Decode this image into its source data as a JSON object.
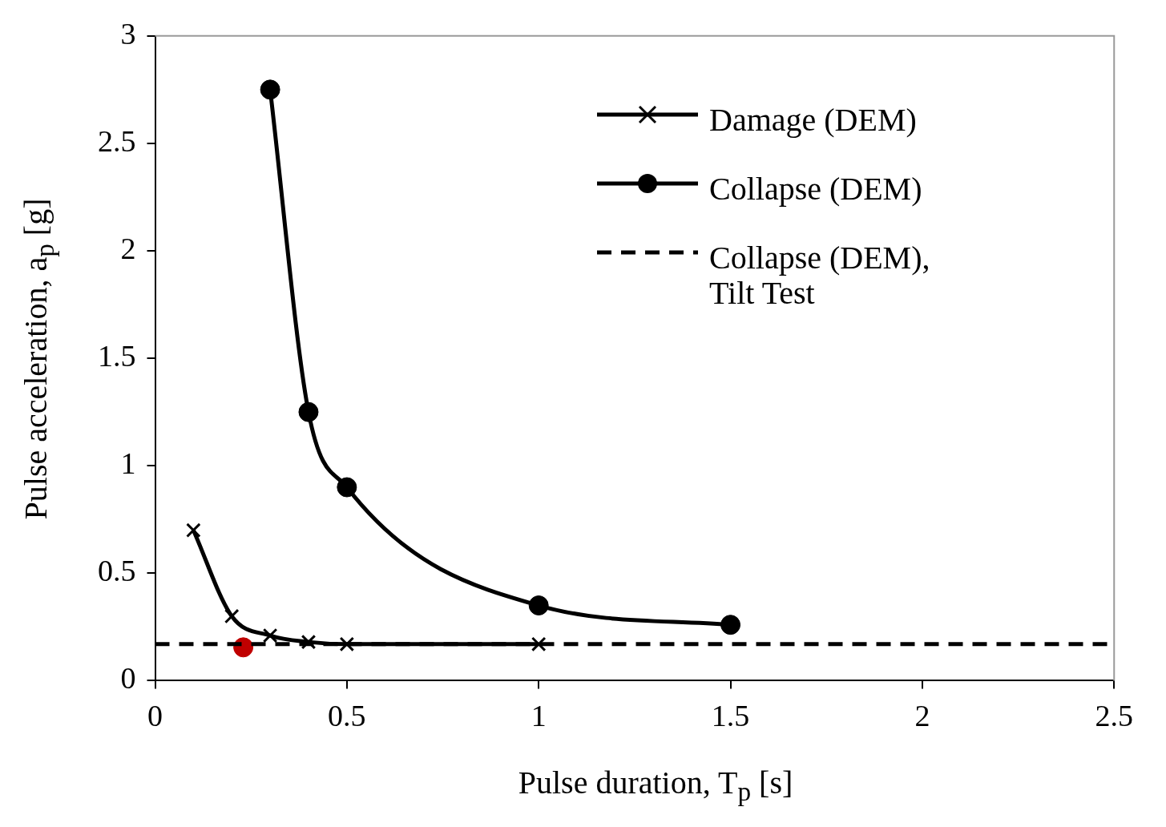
{
  "chart_data": {
    "type": "line",
    "xlabel": "Pulse duration, T$_{p}$ [s]",
    "ylabel": "Pulse acceleration, a$_{p}$ [g]",
    "xlim": [
      0,
      2.5
    ],
    "xticks": [
      0,
      0.5,
      1,
      1.5,
      2,
      2.5
    ],
    "ylim": [
      0,
      3
    ],
    "yticks": [
      0,
      0.5,
      1,
      1.5,
      2,
      2.5,
      3
    ],
    "grid": false,
    "legend": "top right",
    "series": [
      {
        "name": "Damage (DEM)",
        "color": "#000000",
        "marker": "cross",
        "line_style": "solid",
        "x": [
          0.1,
          0.2,
          0.3,
          0.4,
          0.5,
          1.0
        ],
        "values": [
          0.7,
          0.3,
          0.21,
          0.18,
          0.17,
          0.17
        ]
      },
      {
        "name": "Collapse (DEM)",
        "color": "#000000",
        "marker": "circle",
        "line_style": "solid",
        "x": [
          0.3,
          0.4,
          0.5,
          1.0,
          1.5
        ],
        "values": [
          2.75,
          1.25,
          0.9,
          0.35,
          0.26
        ]
      },
      {
        "name": "Collapse (DEM), Tilt Test",
        "color": "#000000",
        "marker": "none",
        "line_style": "dashed",
        "x": [
          0,
          2.5
        ],
        "values": [
          0.17,
          0.17
        ]
      },
      {
        "type": "scatter",
        "color": "#c00000",
        "marker": "circle",
        "x": [
          0.23
        ],
        "values": [
          0.155
        ]
      }
    ]
  }
}
